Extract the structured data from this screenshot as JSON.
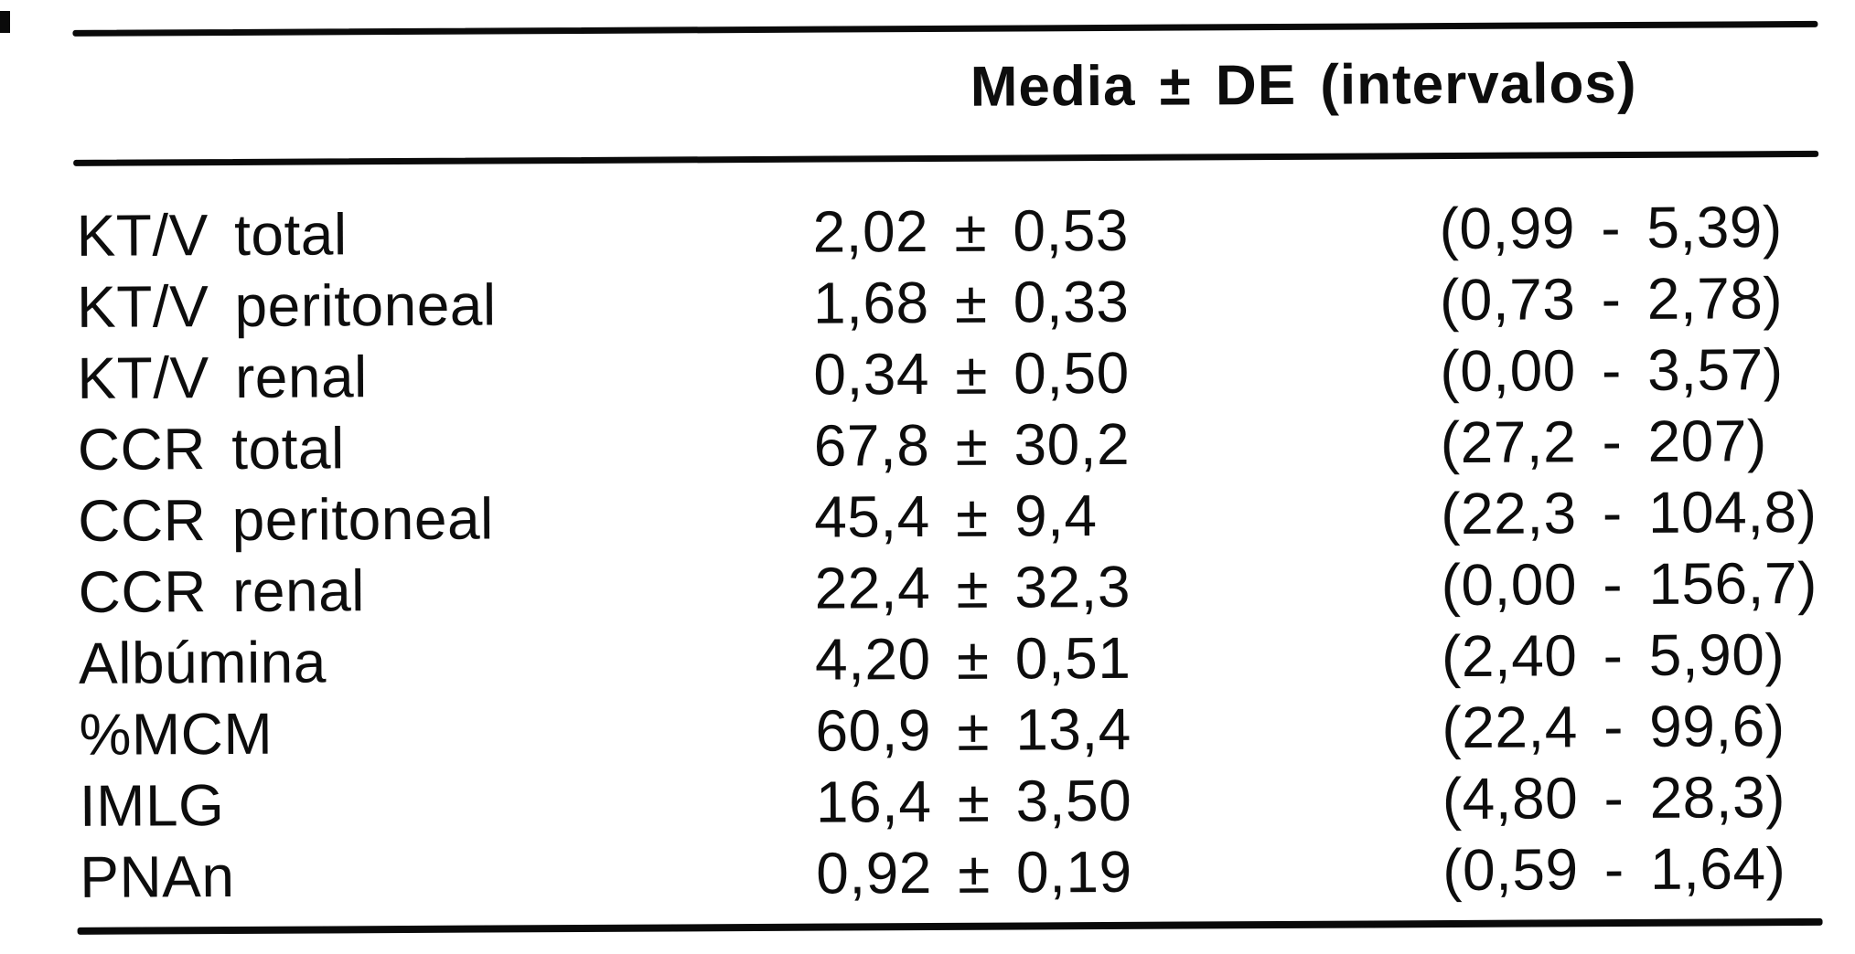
{
  "table": {
    "header": "Media ± DE (intervalos)",
    "rows": [
      {
        "label": "KT/V total",
        "mean_sd": "2,02 ± 0,53",
        "interval": "(0,99 - 5,39)"
      },
      {
        "label": "KT/V peritoneal",
        "mean_sd": "1,68 ± 0,33",
        "interval": "(0,73 - 2,78)"
      },
      {
        "label": "KT/V renal",
        "mean_sd": "0,34 ± 0,50",
        "interval": "(0,00 - 3,57)"
      },
      {
        "label": "CCR total",
        "mean_sd": "67,8 ± 30,2",
        "interval": "(27,2 - 207)"
      },
      {
        "label": "CCR peritoneal",
        "mean_sd": "45,4 ± 9,4",
        "interval": "(22,3 - 104,8)"
      },
      {
        "label": "CCR renal",
        "mean_sd": "22,4 ± 32,3",
        "interval": "(0,00 - 156,7)"
      },
      {
        "label": "Albúmina",
        "mean_sd": "4,20 ± 0,51",
        "interval": "(2,40 - 5,90)"
      },
      {
        "label": "%MCM",
        "mean_sd": "60,9 ± 13,4",
        "interval": "(22,4 - 99,6)"
      },
      {
        "label": "IMLG",
        "mean_sd": "16,4 ± 3,50",
        "interval": "(4,80 - 28,3)"
      },
      {
        "label": "PNAn",
        "mean_sd": "0,92 ± 0,19",
        "interval": "(0,59 - 1,64)"
      }
    ],
    "colors": {
      "text": "#0d0d0d",
      "background": "#ffffff",
      "rule": "#0a0a0a"
    }
  }
}
